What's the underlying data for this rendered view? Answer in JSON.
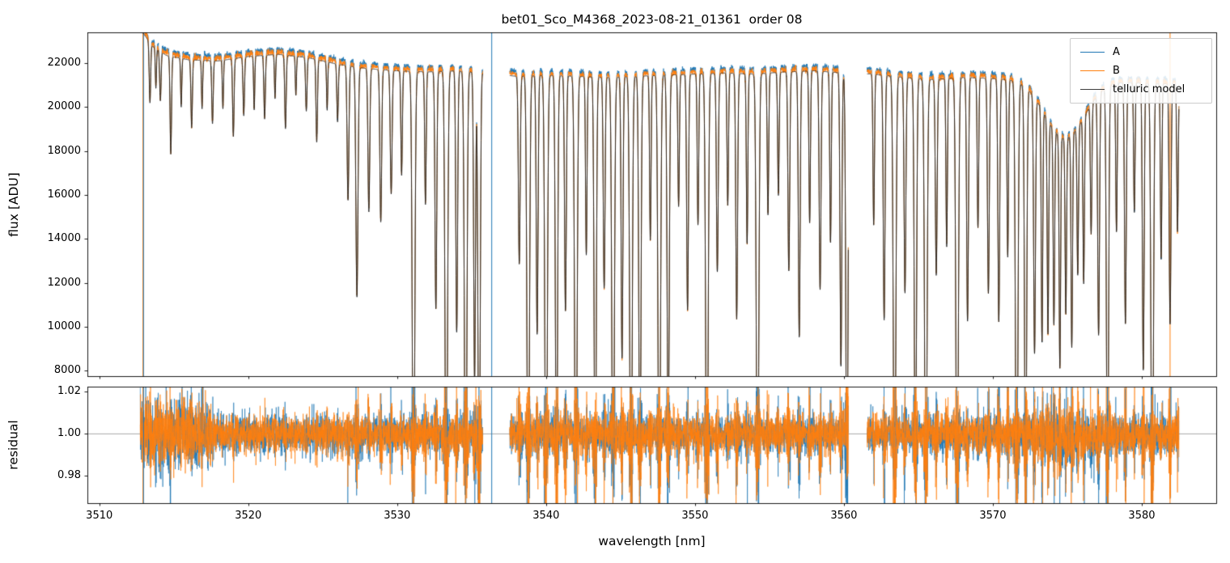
{
  "figure": {
    "title": "bet01_Sco_M4368_2023-08-21_01361  order 08"
  },
  "chart_data": [
    {
      "type": "line",
      "title": "bet01_Sco_M4368_2023-08-21_01361  order 08",
      "xlabel": "wavelength [nm]",
      "ylabel": "flux [ADU]",
      "xlim": [
        3509.2,
        3585.0
      ],
      "ylim": [
        7750,
        23400
      ],
      "xticks": [
        3510,
        3520,
        3530,
        3540,
        3550,
        3560,
        3570,
        3580
      ],
      "xticklabels": [
        "3510",
        "3520",
        "3530",
        "3540",
        "3550",
        "3560",
        "3570",
        "3580"
      ],
      "yticks": [
        8000,
        10000,
        12000,
        14000,
        16000,
        18000,
        20000,
        22000
      ],
      "yticklabels": [
        "8000",
        "10000",
        "12000",
        "14000",
        "16000",
        "18000",
        "20000",
        "22000"
      ],
      "legend": {
        "position": "upper right",
        "entries": [
          {
            "label": "A",
            "color": "#1f77b4"
          },
          {
            "label": "B",
            "color": "#ff7f0e"
          },
          {
            "label": "telluric model",
            "color": "#3d3d3d"
          }
        ]
      },
      "model_color": "#222222",
      "spectrum": {
        "data_range": [
          3512.75,
          3582.5
        ],
        "sample_step": 0.008,
        "gaps": [
          [
            3535.75,
            3537.55
          ],
          [
            3560.3,
            3561.55
          ]
        ],
        "offsets": {
          "A": 0.01,
          "B": 0.005
        },
        "noise_sigma_base": 0.0028,
        "continuum_points": [
          [
            3512.9,
            23400
          ],
          [
            3513.6,
            22750
          ],
          [
            3514.5,
            22350
          ],
          [
            3516,
            22150
          ],
          [
            3518,
            22100
          ],
          [
            3520,
            22300
          ],
          [
            3522,
            22400
          ],
          [
            3524,
            22250
          ],
          [
            3526,
            21950
          ],
          [
            3528,
            21750
          ],
          [
            3530,
            21650
          ],
          [
            3532,
            21600
          ],
          [
            3534,
            21650
          ],
          [
            3536,
            21550
          ],
          [
            3538,
            21400
          ],
          [
            3540,
            21450
          ],
          [
            3542,
            21400
          ],
          [
            3544,
            21350
          ],
          [
            3546,
            21400
          ],
          [
            3548,
            21450
          ],
          [
            3550,
            21500
          ],
          [
            3552,
            21550
          ],
          [
            3554,
            21500
          ],
          [
            3556,
            21600
          ],
          [
            3558,
            21650
          ],
          [
            3560,
            21550
          ],
          [
            3562,
            21500
          ],
          [
            3564,
            21350
          ],
          [
            3566,
            21250
          ],
          [
            3568,
            21350
          ],
          [
            3570,
            21300
          ],
          [
            3572,
            21250
          ],
          [
            3574,
            21150
          ],
          [
            3576,
            21050
          ],
          [
            3578,
            21150
          ],
          [
            3580,
            21100
          ],
          [
            3582,
            21050
          ],
          [
            3583,
            21050
          ]
        ],
        "absorption_lines": [
          [
            3513.4,
            0.12,
            0.05
          ],
          [
            3513.8,
            0.08,
            0.04
          ],
          [
            3514.1,
            0.1,
            0.05
          ],
          [
            3514.8,
            0.2,
            0.05
          ],
          [
            3515.5,
            0.1,
            0.04
          ],
          [
            3516.2,
            0.14,
            0.05
          ],
          [
            3516.9,
            0.1,
            0.04
          ],
          [
            3517.6,
            0.13,
            0.05
          ],
          [
            3518.3,
            0.1,
            0.04
          ],
          [
            3519.0,
            0.16,
            0.05
          ],
          [
            3519.7,
            0.12,
            0.05
          ],
          [
            3520.4,
            0.11,
            0.04
          ],
          [
            3521.1,
            0.13,
            0.05
          ],
          [
            3521.8,
            0.09,
            0.04
          ],
          [
            3522.5,
            0.15,
            0.05
          ],
          [
            3523.2,
            0.08,
            0.04
          ],
          [
            3523.9,
            0.11,
            0.05
          ],
          [
            3524.6,
            0.17,
            0.05
          ],
          [
            3525.3,
            0.1,
            0.04
          ],
          [
            3526.0,
            0.12,
            0.05
          ],
          [
            3526.7,
            0.28,
            0.06
          ],
          [
            3527.3,
            0.48,
            0.07
          ],
          [
            3528.1,
            0.3,
            0.06
          ],
          [
            3528.9,
            0.32,
            0.06
          ],
          [
            3529.6,
            0.26,
            0.06
          ],
          [
            3530.3,
            0.22,
            0.05
          ],
          [
            3531.1,
            1.0,
            0.08
          ],
          [
            3531.9,
            0.28,
            0.05
          ],
          [
            3532.6,
            0.5,
            0.06
          ],
          [
            3533.3,
            1.0,
            0.08
          ],
          [
            3534.0,
            0.55,
            0.06
          ],
          [
            3534.6,
            1.0,
            0.08
          ],
          [
            3535.2,
            0.65,
            0.06
          ],
          [
            3535.5,
            1.0,
            0.07
          ],
          [
            3538.2,
            0.4,
            0.06
          ],
          [
            3538.8,
            1.0,
            0.08
          ],
          [
            3539.4,
            0.55,
            0.06
          ],
          [
            3540.0,
            1.0,
            0.08
          ],
          [
            3540.7,
            0.92,
            0.07
          ],
          [
            3541.3,
            0.5,
            0.06
          ],
          [
            3542.0,
            1.0,
            0.08
          ],
          [
            3542.7,
            0.38,
            0.05
          ],
          [
            3543.3,
            0.95,
            0.07
          ],
          [
            3543.9,
            0.45,
            0.06
          ],
          [
            3544.5,
            1.0,
            0.08
          ],
          [
            3545.1,
            0.6,
            0.06
          ],
          [
            3545.7,
            1.0,
            0.08
          ],
          [
            3546.3,
            0.9,
            0.07
          ],
          [
            3547.0,
            0.35,
            0.05
          ],
          [
            3547.6,
            1.0,
            0.08
          ],
          [
            3548.2,
            0.8,
            0.07
          ],
          [
            3548.9,
            0.28,
            0.05
          ],
          [
            3549.5,
            0.5,
            0.06
          ],
          [
            3550.2,
            0.32,
            0.05
          ],
          [
            3550.8,
            1.0,
            0.08
          ],
          [
            3551.5,
            0.42,
            0.06
          ],
          [
            3552.2,
            0.28,
            0.05
          ],
          [
            3552.8,
            0.52,
            0.06
          ],
          [
            3553.5,
            0.36,
            0.05
          ],
          [
            3554.2,
            1.0,
            0.08
          ],
          [
            3554.9,
            0.3,
            0.05
          ],
          [
            3555.6,
            0.26,
            0.05
          ],
          [
            3556.3,
            0.42,
            0.06
          ],
          [
            3557.0,
            0.56,
            0.06
          ],
          [
            3557.7,
            0.32,
            0.05
          ],
          [
            3558.4,
            0.46,
            0.06
          ],
          [
            3559.1,
            0.36,
            0.05
          ],
          [
            3559.8,
            0.62,
            0.06
          ],
          [
            3560.2,
            0.92,
            0.07
          ],
          [
            3562.0,
            0.32,
            0.05
          ],
          [
            3562.7,
            0.52,
            0.06
          ],
          [
            3563.4,
            1.0,
            0.08
          ],
          [
            3564.1,
            0.46,
            0.06
          ],
          [
            3564.8,
            0.92,
            0.07
          ],
          [
            3565.5,
            1.0,
            0.08
          ],
          [
            3566.2,
            0.42,
            0.06
          ],
          [
            3566.9,
            0.36,
            0.05
          ],
          [
            3567.6,
            1.0,
            0.08
          ],
          [
            3568.3,
            0.52,
            0.06
          ],
          [
            3569.0,
            0.32,
            0.05
          ],
          [
            3569.7,
            0.46,
            0.06
          ],
          [
            3570.4,
            0.52,
            0.06
          ],
          [
            3571.0,
            0.38,
            0.05
          ],
          [
            3571.6,
            1.0,
            0.08
          ],
          [
            3572.2,
            0.9,
            0.07
          ],
          [
            3572.8,
            0.55,
            0.06
          ],
          [
            3573.3,
            0.5,
            0.05
          ],
          [
            3573.7,
            0.46,
            0.05
          ],
          [
            3574.1,
            0.42,
            0.05
          ],
          [
            3574.5,
            0.5,
            0.05
          ],
          [
            3574.9,
            0.38,
            0.05
          ],
          [
            3575.3,
            0.46,
            0.05
          ],
          [
            3575.7,
            0.32,
            0.05
          ],
          [
            3576.1,
            0.36,
            0.05
          ],
          [
            3574.8,
            0.12,
            1.3
          ],
          [
            3576.6,
            0.28,
            0.05
          ],
          [
            3577.1,
            0.52,
            0.06
          ],
          [
            3577.7,
            0.92,
            0.07
          ],
          [
            3578.3,
            0.32,
            0.05
          ],
          [
            3578.9,
            0.52,
            0.06
          ],
          [
            3579.5,
            0.28,
            0.05
          ],
          [
            3580.1,
            0.62,
            0.06
          ],
          [
            3580.7,
            1.0,
            0.08
          ],
          [
            3581.3,
            0.38,
            0.05
          ],
          [
            3581.9,
            0.52,
            0.06
          ],
          [
            3582.4,
            0.32,
            0.05
          ]
        ],
        "artifact_spikes": [
          {
            "wavelength": 3512.93,
            "series": "B"
          },
          {
            "wavelength": 3512.97,
            "series": "A"
          },
          {
            "wavelength": 3536.35,
            "series": "A"
          },
          {
            "wavelength": 3581.9,
            "series": "B"
          }
        ]
      }
    },
    {
      "type": "line",
      "xlabel": "wavelength [nm]",
      "ylabel": "residual",
      "xlim": [
        3509.2,
        3585.0
      ],
      "ylim": [
        0.967,
        1.0225
      ],
      "xticks": [
        3510,
        3520,
        3530,
        3540,
        3550,
        3560,
        3570,
        3580
      ],
      "xticklabels": [
        "3510",
        "3520",
        "3530",
        "3540",
        "3550",
        "3560",
        "3570",
        "3580"
      ],
      "yticks": [
        0.98,
        1.0,
        1.02
      ],
      "yticklabels": [
        "0.98",
        "1.00",
        "1.02"
      ],
      "hline": 1.0,
      "series": [
        "A",
        "B"
      ],
      "noise_sigma_base": 0.0042,
      "noise_sigma_line_boost": 0.022
    }
  ]
}
